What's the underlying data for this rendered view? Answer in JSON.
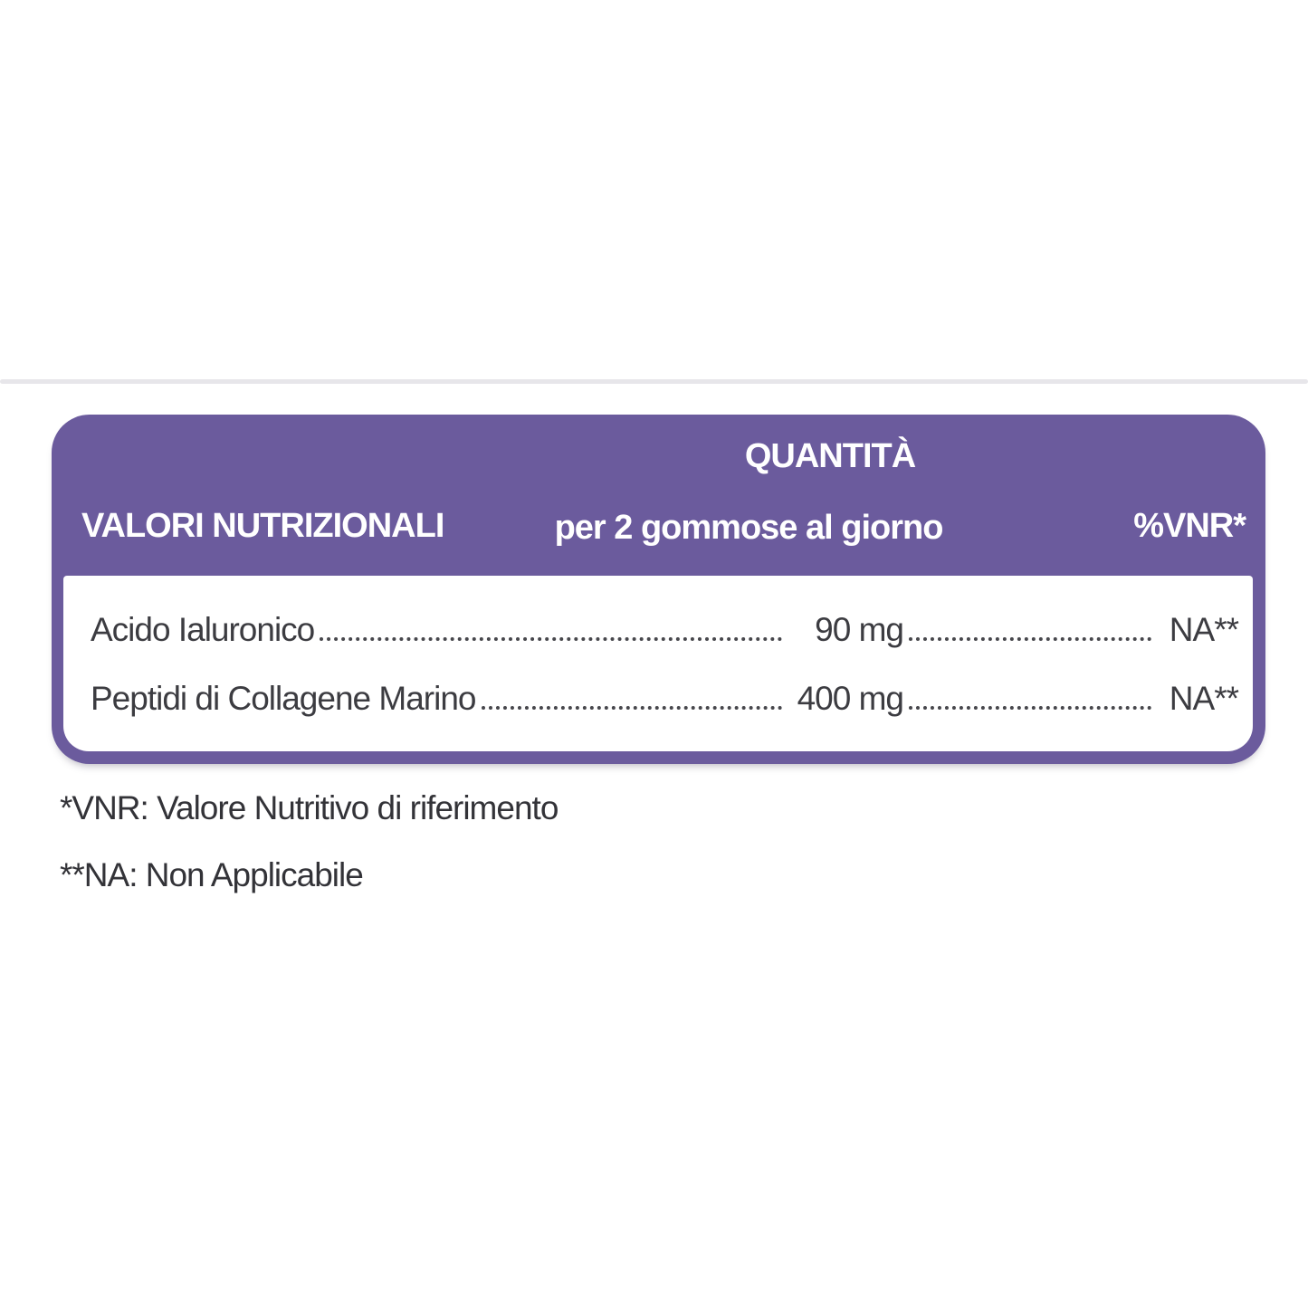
{
  "table": {
    "accent_color": "#6b5b9d",
    "text_color": "#3c3c41",
    "header": {
      "nutrients_label": "VALORI NUTRIZIONALI",
      "quantity_line1": "QUANTITÀ",
      "quantity_line2": "per 2 gommose al giorno",
      "vnr_label": "%VNR*"
    },
    "rows": [
      {
        "label": "Acido Ialuronico",
        "amount": "90 mg",
        "vnr": "NA**"
      },
      {
        "label": "Peptidi di Collagene Marino",
        "amount": "400 mg",
        "vnr": "NA**"
      }
    ]
  },
  "footnotes": {
    "vnr_note": "*VNR: Valore Nutritivo di riferimento",
    "na_note": "**NA: Non Applicabile"
  }
}
